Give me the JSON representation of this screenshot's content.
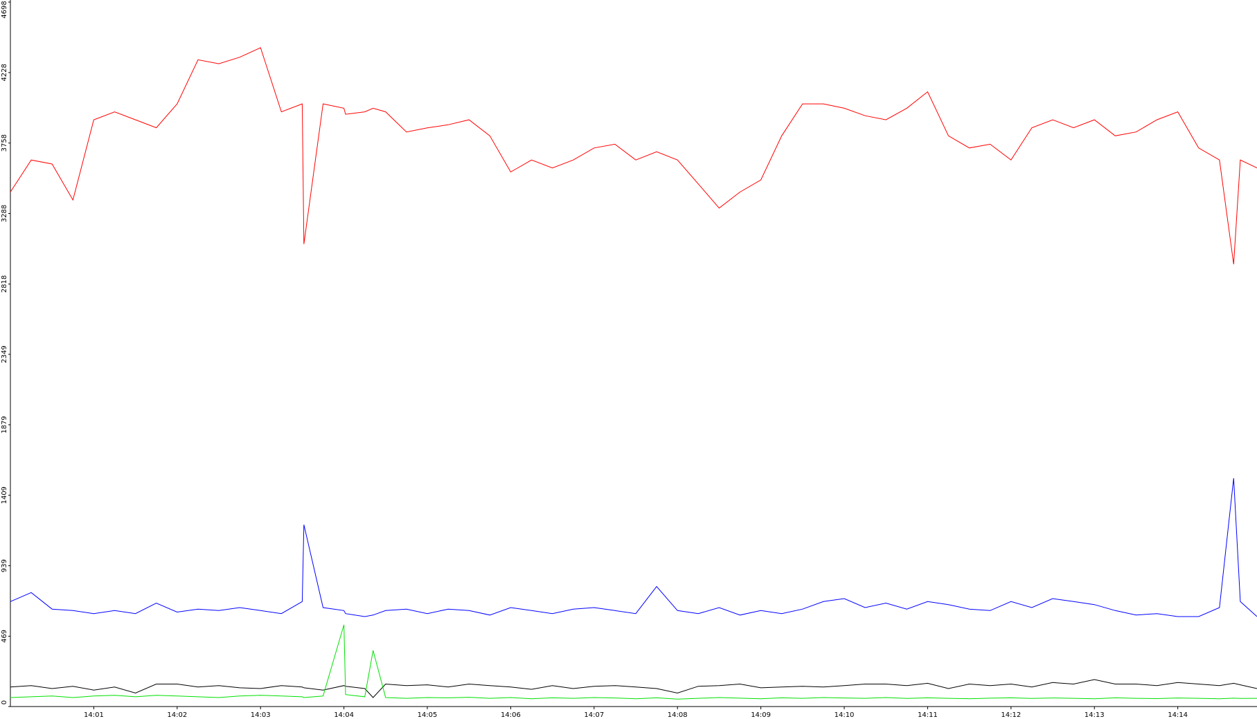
{
  "chart_data": {
    "type": "line",
    "grid": false,
    "x": [
      0,
      0.25,
      0.5,
      0.75,
      1,
      1.25,
      1.5,
      1.75,
      2,
      2.25,
      2.5,
      2.75,
      3,
      3.25,
      3.5,
      3.52,
      3.75,
      4,
      4.02,
      4.25,
      4.35,
      4.5,
      4.75,
      5,
      5.25,
      5.5,
      5.75,
      6,
      6.25,
      6.5,
      6.75,
      7,
      7.25,
      7.5,
      7.75,
      8,
      8.25,
      8.5,
      8.75,
      9,
      9.25,
      9.5,
      9.75,
      10,
      10.25,
      10.5,
      10.75,
      11,
      11.25,
      11.5,
      11.75,
      12,
      12.25,
      12.5,
      12.75,
      13,
      13.25,
      13.5,
      13.75,
      14,
      14.25,
      14.5,
      14.67,
      14.75,
      14.95
    ],
    "xlim": [
      0,
      14.95
    ],
    "xticks": [
      {
        "value": 1,
        "label": "14:01"
      },
      {
        "value": 2,
        "label": "14:02"
      },
      {
        "value": 3,
        "label": "14:03"
      },
      {
        "value": 4,
        "label": "14:04"
      },
      {
        "value": 5,
        "label": "14:05"
      },
      {
        "value": 6,
        "label": "14:06"
      },
      {
        "value": 7,
        "label": "14:07"
      },
      {
        "value": 8,
        "label": "14:08"
      },
      {
        "value": 9,
        "label": "14:09"
      },
      {
        "value": 10,
        "label": "14:10"
      },
      {
        "value": 11,
        "label": "14:11"
      },
      {
        "value": 12,
        "label": "14:12"
      },
      {
        "value": 13,
        "label": "14:13"
      },
      {
        "value": 14,
        "label": "14:14"
      }
    ],
    "ylim": [
      0,
      4698
    ],
    "yticks": [
      0,
      469,
      939,
      1409,
      1879,
      2349,
      2818,
      3288,
      3758,
      4228,
      4698
    ],
    "series": [
      {
        "color": "#0000ff",
        "values": [
          700,
          760,
          650,
          640,
          620,
          640,
          620,
          690,
          630,
          650,
          640,
          660,
          640,
          620,
          700,
          1213,
          660,
          640,
          620,
          600,
          610,
          640,
          650,
          620,
          650,
          640,
          610,
          660,
          640,
          620,
          650,
          660,
          640,
          620,
          800,
          640,
          620,
          660,
          610,
          640,
          620,
          650,
          700,
          720,
          660,
          690,
          650,
          700,
          680,
          650,
          640,
          700,
          660,
          720,
          700,
          680,
          640,
          610,
          620,
          600,
          600,
          660,
          1523,
          700,
          600
        ]
      },
      {
        "color": "#000000",
        "values": [
          130,
          140,
          120,
          135,
          110,
          130,
          90,
          150,
          150,
          130,
          140,
          125,
          120,
          140,
          130,
          125,
          110,
          140,
          135,
          120,
          60,
          150,
          140,
          145,
          130,
          150,
          140,
          130,
          115,
          140,
          120,
          135,
          140,
          130,
          120,
          90,
          135,
          140,
          150,
          125,
          130,
          135,
          130,
          140,
          150,
          150,
          140,
          155,
          120,
          150,
          140,
          150,
          130,
          160,
          150,
          180,
          150,
          150,
          140,
          160,
          150,
          140,
          155,
          145,
          120
        ]
      },
      {
        "color": "#00e000",
        "values": [
          60,
          65,
          70,
          60,
          70,
          75,
          65,
          75,
          70,
          65,
          60,
          70,
          75,
          70,
          65,
          60,
          70,
          545,
          80,
          65,
          374,
          60,
          55,
          60,
          58,
          62,
          55,
          60,
          52,
          58,
          55,
          60,
          57,
          52,
          58,
          50,
          55,
          60,
          56,
          52,
          58,
          55,
          60,
          57,
          55,
          60,
          54,
          58,
          55,
          52,
          56,
          58,
          54,
          57,
          55,
          52,
          58,
          55,
          53,
          57,
          55,
          52,
          56,
          54,
          55
        ]
      },
      {
        "color": "#ff0000",
        "values": [
          3431,
          3645,
          3618,
          3378,
          3913,
          3966,
          3913,
          3860,
          4019,
          4313,
          4287,
          4330,
          4394,
          3966,
          4019,
          3084,
          4019,
          3990,
          3950,
          3966,
          3990,
          3966,
          3832,
          3859,
          3880,
          3913,
          3806,
          3565,
          3645,
          3592,
          3645,
          3725,
          3750,
          3645,
          3700,
          3645,
          3485,
          3324,
          3431,
          3512,
          3806,
          4019,
          4019,
          3990,
          3940,
          3913,
          3990,
          4100,
          3806,
          3725,
          3750,
          3645,
          3860,
          3913,
          3860,
          3913,
          3806,
          3832,
          3913,
          3966,
          3725,
          3645,
          2950,
          3645,
          3592
        ]
      }
    ]
  }
}
